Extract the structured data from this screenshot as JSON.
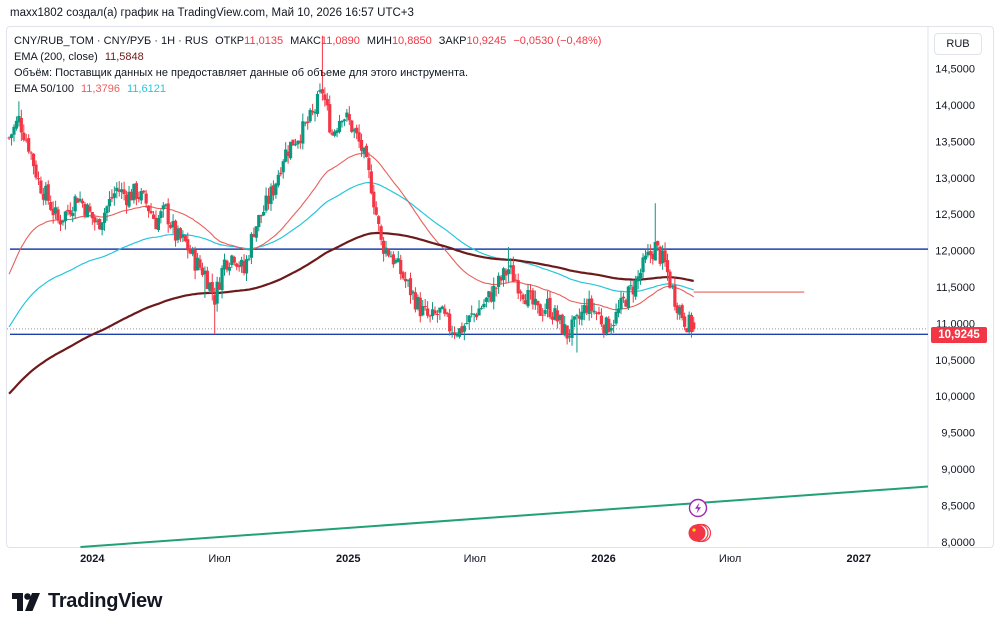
{
  "header": {
    "published_by": "maxx1802 создал(а) график на TradingView.com, Май 10, 2026 16:57 UTC+3"
  },
  "legend": {
    "symbol": "CNY/RUB_TOM · CNY/РУБ · 1Н · RUS",
    "open_label": "ОТКР",
    "open_value": "11,0135",
    "high_label": "МАКС",
    "high_value": "11,0890",
    "low_label": "МИН",
    "low_value": "10,8850",
    "close_label": "ЗАКР",
    "close_value": "10,9245",
    "change": "−0,0530 (−0,48%)",
    "ema200_label": "EMA (200, close)",
    "ema200_value": "11,5848",
    "volume_note": "Объём: Поставщик данных не предоставляет данные об объеме для этого инструмента.",
    "ema50_100_label": "EMA 50/100",
    "ema50_value": "11,3796",
    "ema100_value": "11,6121"
  },
  "currency_button": "RUB",
  "last_price_badge": "10,9245",
  "brand": {
    "name": "TradingView"
  },
  "colors": {
    "up": "#089981",
    "down": "#f23645",
    "ema200": "#6d1a1a",
    "ema50": "#e8605b",
    "ema100": "#26c6da",
    "horizontal_lines": "#1e40af",
    "trend_line": "#22a078"
  },
  "icons": [
    "lightning-icon",
    "china-flag-icon"
  ],
  "chart_data": {
    "type": "candlestick",
    "title": "CNY/RUB_TOM · CNY/РУБ · 1Н · RUS",
    "xlabel": "",
    "ylabel": "",
    "ylim": [
      7.93,
      15.07
    ],
    "yticks": [
      "14,5000",
      "14,0000",
      "13,5000",
      "13,0000",
      "12,5000",
      "12,0000",
      "11,5000",
      "11,0000",
      "10,5000",
      "10,0000",
      "9,5000",
      "9,0000",
      "8,5000",
      "8,0000"
    ],
    "ytick_values": [
      14.5,
      14.0,
      13.5,
      13.0,
      12.5,
      12.0,
      11.5,
      11.0,
      10.5,
      10.0,
      9.5,
      9.0,
      8.5,
      8.0
    ],
    "x_domain": [
      "2023-09-01",
      "2027-04-10"
    ],
    "xticks": [
      {
        "label": "2024",
        "date": "2024-01-01"
      },
      {
        "label": "Июл",
        "date": "2024-07-01"
      },
      {
        "label": "2025",
        "date": "2025-01-01"
      },
      {
        "label": "Июл",
        "date": "2025-07-01"
      },
      {
        "label": "2026",
        "date": "2026-01-01"
      },
      {
        "label": "Июл",
        "date": "2026-07-01"
      },
      {
        "label": "2027",
        "date": "2027-01-01"
      }
    ],
    "horizontal_lines": [
      12.02,
      10.85
    ],
    "ema50_extension": {
      "value": 11.43,
      "from": "2026-05-10",
      "to": "2026-10-15"
    },
    "trend_line": {
      "from": [
        "2023-12-15",
        7.93
      ],
      "to": [
        "2027-04-10",
        8.76
      ]
    },
    "last_price": 10.9245,
    "ohlc_close_series": [
      [
        "2023-09-04",
        13.55
      ],
      [
        "2023-09-18",
        13.8
      ],
      [
        "2023-10-02",
        13.45
      ],
      [
        "2023-10-16",
        12.95
      ],
      [
        "2023-10-30",
        12.7
      ],
      [
        "2023-11-13",
        12.4
      ],
      [
        "2023-11-27",
        12.55
      ],
      [
        "2023-12-11",
        12.75
      ],
      [
        "2023-12-25",
        12.55
      ],
      [
        "2024-01-08",
        12.35
      ],
      [
        "2024-01-22",
        12.6
      ],
      [
        "2024-02-05",
        12.85
      ],
      [
        "2024-02-19",
        12.75
      ],
      [
        "2024-03-04",
        12.8
      ],
      [
        "2024-03-18",
        12.65
      ],
      [
        "2024-04-01",
        12.4
      ],
      [
        "2024-04-15",
        12.55
      ],
      [
        "2024-04-29",
        12.2
      ],
      [
        "2024-05-13",
        12.1
      ],
      [
        "2024-05-27",
        11.85
      ],
      [
        "2024-06-10",
        11.7
      ],
      [
        "2024-06-24",
        11.35
      ],
      [
        "2024-07-08",
        11.85
      ],
      [
        "2024-07-22",
        11.95
      ],
      [
        "2024-08-05",
        11.7
      ],
      [
        "2024-08-19",
        12.3
      ],
      [
        "2024-09-02",
        12.55
      ],
      [
        "2024-09-16",
        12.85
      ],
      [
        "2024-09-30",
        13.3
      ],
      [
        "2024-10-14",
        13.5
      ],
      [
        "2024-10-28",
        13.65
      ],
      [
        "2024-11-11",
        13.85
      ],
      [
        "2024-11-25",
        14.2
      ],
      [
        "2024-12-09",
        13.6
      ],
      [
        "2024-12-23",
        13.9
      ],
      [
        "2025-01-06",
        13.7
      ],
      [
        "2025-01-20",
        13.4
      ],
      [
        "2025-02-03",
        12.9
      ],
      [
        "2025-02-17",
        12.1
      ],
      [
        "2025-03-03",
        11.95
      ],
      [
        "2025-03-17",
        11.7
      ],
      [
        "2025-03-31",
        11.45
      ],
      [
        "2025-04-14",
        11.2
      ],
      [
        "2025-04-28",
        11.05
      ],
      [
        "2025-05-12",
        11.15
      ],
      [
        "2025-05-26",
        10.95
      ],
      [
        "2025-06-09",
        10.9
      ],
      [
        "2025-06-23",
        11.05
      ],
      [
        "2025-07-07",
        11.2
      ],
      [
        "2025-07-21",
        11.35
      ],
      [
        "2025-08-04",
        11.55
      ],
      [
        "2025-08-18",
        11.75
      ],
      [
        "2025-09-01",
        11.55
      ],
      [
        "2025-09-15",
        11.35
      ],
      [
        "2025-09-29",
        11.15
      ],
      [
        "2025-10-13",
        11.25
      ],
      [
        "2025-10-27",
        11.05
      ],
      [
        "2025-11-10",
        10.85
      ],
      [
        "2025-11-24",
        11.0
      ],
      [
        "2025-12-08",
        11.25
      ],
      [
        "2025-12-22",
        11.15
      ],
      [
        "2026-01-05",
        10.95
      ],
      [
        "2026-01-19",
        11.1
      ],
      [
        "2026-02-02",
        11.35
      ],
      [
        "2026-02-16",
        11.55
      ],
      [
        "2026-03-02",
        11.85
      ],
      [
        "2026-03-16",
        12.05
      ],
      [
        "2026-03-30",
        11.8
      ],
      [
        "2026-04-13",
        11.35
      ],
      [
        "2026-04-27",
        11.05
      ],
      [
        "2026-05-10",
        10.92
      ]
    ]
  }
}
